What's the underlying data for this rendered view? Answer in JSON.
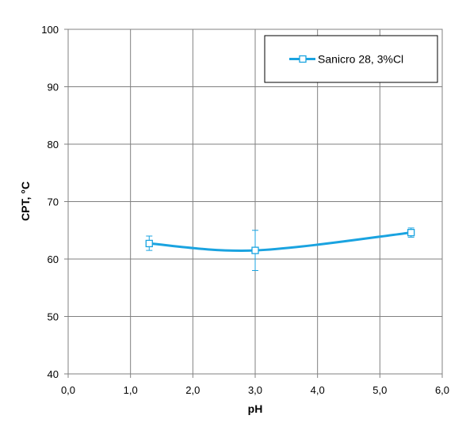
{
  "chart_data": {
    "type": "line",
    "title": "",
    "xlabel": "pH",
    "ylabel": "CPT, °C",
    "xlim": [
      0,
      6
    ],
    "ylim": [
      40,
      100
    ],
    "xticks": [
      0,
      1,
      2,
      3,
      4,
      5,
      6
    ],
    "xtick_labels": [
      "0,0",
      "1,0",
      "2,0",
      "3,0",
      "4,0",
      "5,0",
      "6,0"
    ],
    "yticks": [
      40,
      50,
      60,
      70,
      80,
      90,
      100
    ],
    "ytick_labels": [
      "40",
      "50",
      "60",
      "70",
      "80",
      "90",
      "100"
    ],
    "grid": true,
    "smooth": true,
    "legend_position": "top-right",
    "series": [
      {
        "name": "Sanicro 28, 3%Cl",
        "color": "#1aa3e0",
        "marker": "square-open",
        "points": [
          {
            "x": 1.3,
            "y": 62.7,
            "err_low": 61.5,
            "err_high": 64.0
          },
          {
            "x": 3.0,
            "y": 61.5,
            "err_low": 58.0,
            "err_high": 65.0
          },
          {
            "x": 5.5,
            "y": 64.6,
            "err_low": 63.8,
            "err_high": 65.4
          }
        ]
      }
    ]
  }
}
